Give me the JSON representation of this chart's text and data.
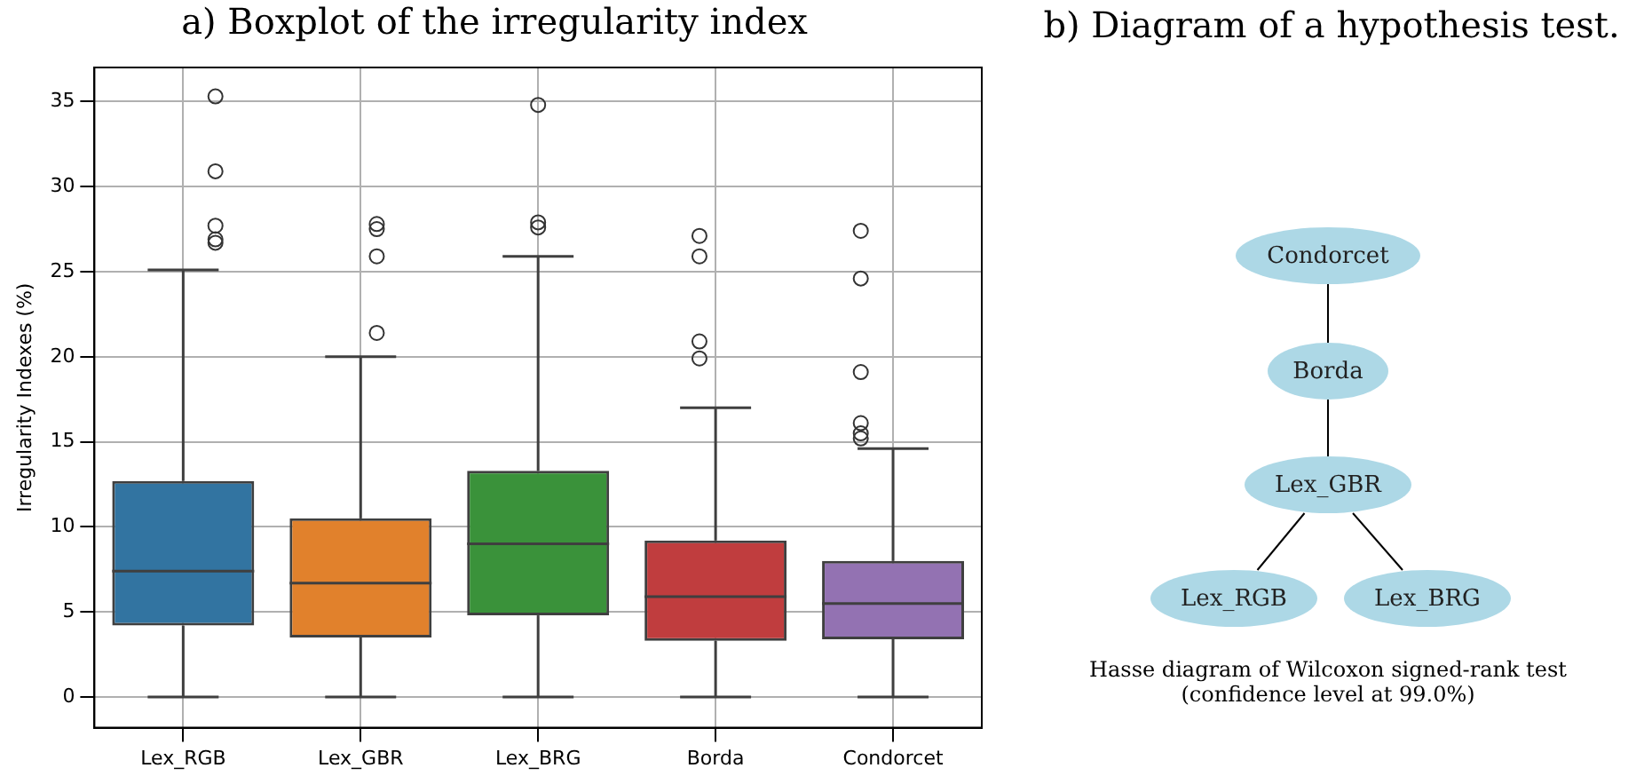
{
  "chart_data": [
    {
      "type": "box",
      "title": "a) Boxplot of the irregularity index",
      "ylabel": "Irregularity Indexes (%)",
      "categories": [
        "Lex_RGB",
        "Lex_GBR",
        "Lex_BRG",
        "Borda",
        "Condorcet"
      ],
      "colors": [
        "#3274a1",
        "#e1812c",
        "#3a923a",
        "#c03d3e",
        "#9372b2"
      ],
      "boxes": [
        {
          "low": 0,
          "q1": 4.2,
          "median": 7.4,
          "q3": 12.7,
          "high": 25.1,
          "outliers": [
            35.3,
            30.9,
            27.7,
            26.9,
            26.7
          ]
        },
        {
          "low": 0,
          "q1": 3.5,
          "median": 6.7,
          "q3": 10.5,
          "high": 20.0,
          "outliers": [
            27.8,
            27.5,
            25.9,
            21.4
          ]
        },
        {
          "low": 0,
          "q1": 4.8,
          "median": 9.0,
          "q3": 13.3,
          "high": 25.9,
          "outliers": [
            34.8,
            27.9,
            27.6
          ]
        },
        {
          "low": 0,
          "q1": 3.3,
          "median": 5.9,
          "q3": 9.2,
          "high": 17.0,
          "outliers": [
            27.1,
            25.9,
            20.9,
            19.9
          ]
        },
        {
          "low": 0,
          "q1": 3.4,
          "median": 5.5,
          "q3": 8.0,
          "high": 14.6,
          "outliers": [
            27.4,
            24.6,
            19.1,
            16.1,
            15.5,
            15.2
          ]
        }
      ],
      "ylim": [
        -1.8,
        37
      ],
      "yticks": [
        0,
        5,
        10,
        15,
        20,
        25,
        30,
        35
      ],
      "grid": true,
      "legend": false
    },
    {
      "type": "other",
      "title": "b) Diagram of a hypothesis test.",
      "categories": [
        "Condorcet",
        "Borda",
        "Lex_GBR",
        "Lex_RGB",
        "Lex_BRG"
      ],
      "annotations": [
        "Hasse diagram of Wilcoxon signed-rank test",
        "(confidence level at 99.0%)"
      ]
    }
  ]
}
